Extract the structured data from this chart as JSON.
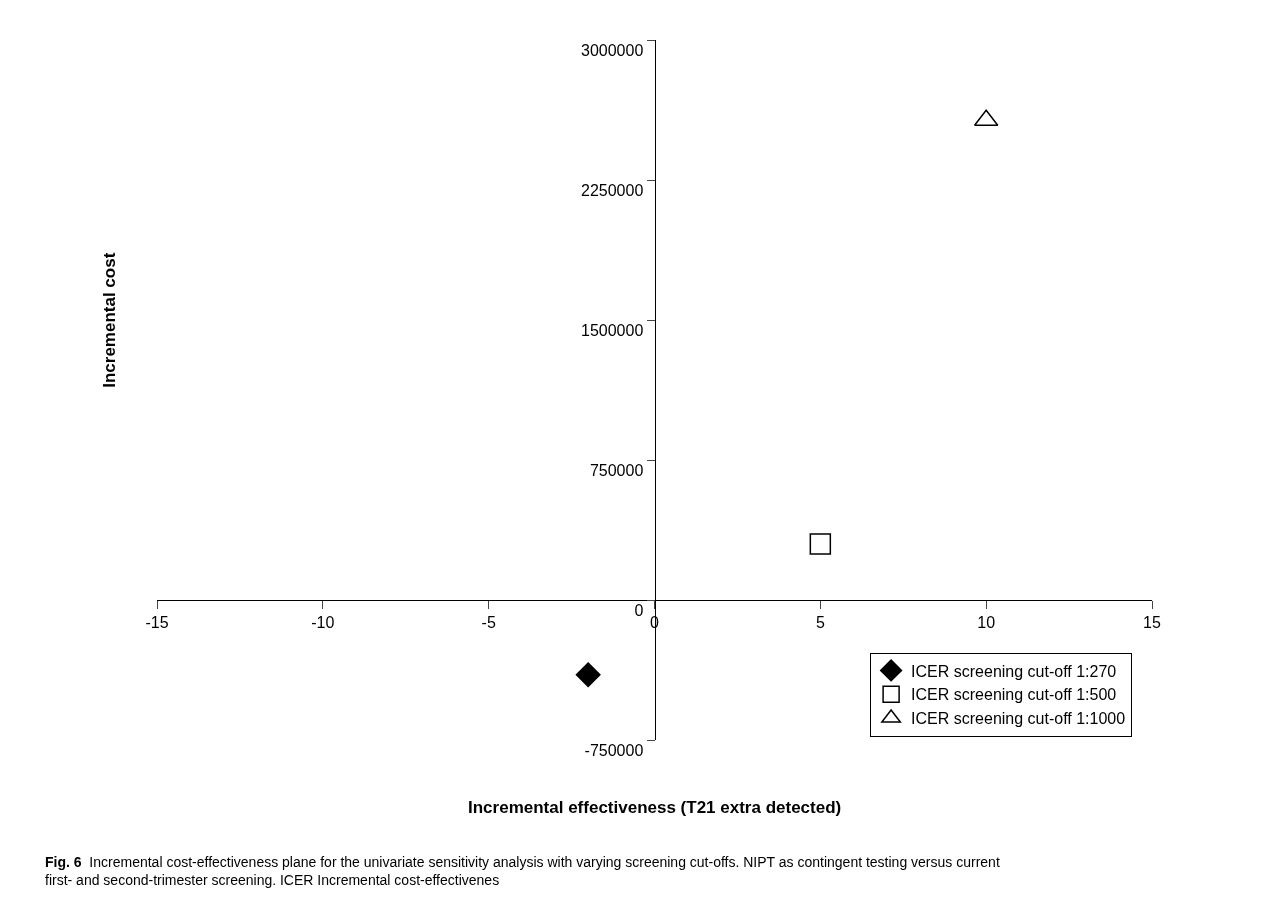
{
  "chart_data": {
    "type": "scatter",
    "xlabel": "Incremental effectiveness (T21 extra detected)",
    "ylabel": "Incremental cost",
    "xlim": [
      -15,
      15
    ],
    "xticks": [
      -15,
      -10,
      -5,
      0,
      5,
      10,
      15
    ],
    "ylim": [
      -750000,
      3000000
    ],
    "yticks": [
      -750000,
      0,
      750000,
      1500000,
      2250000,
      3000000
    ],
    "legend": "bottom right",
    "series": [
      {
        "name": "ICER screening cut-off 1:270",
        "color": "#000000",
        "marker": "diamond",
        "x": [
          -2
        ],
        "values": [
          -400000
        ]
      },
      {
        "name": "ICER screening cut-off 1:500",
        "color": "#000000",
        "marker": "square",
        "x": [
          5
        ],
        "values": [
          300000
        ]
      },
      {
        "name": "ICER screening cut-off 1:1000",
        "color": "#000000",
        "marker": "triangle",
        "x": [
          10
        ],
        "values": [
          2570000
        ]
      }
    ],
    "annotations": [
      "Fig. 6  Incremental cost-effectiveness plane for the univariate sensitivity analysis with varying screening cut-offs. NIPT as contingent testing versus current first- and second-trimester screening. ICER Incremental cost-effectivenes"
    ]
  }
}
